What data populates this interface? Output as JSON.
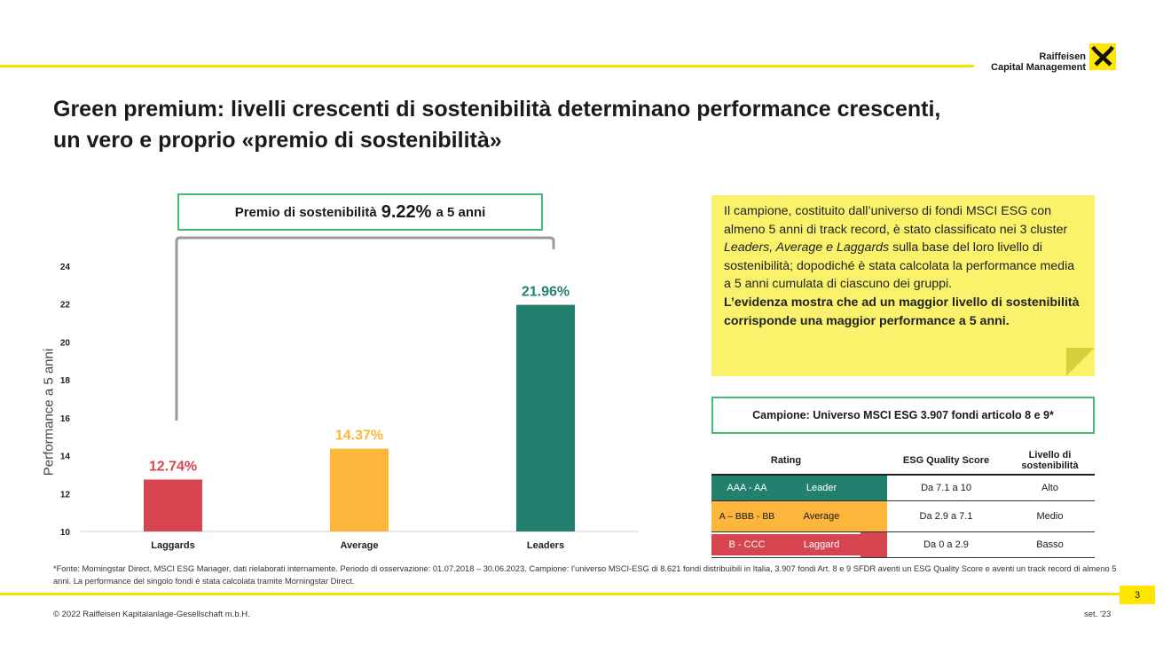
{
  "header": {
    "logo_line1": "Raiffeisen",
    "logo_line2": "Capital Management",
    "title_line1": "Green premium: livelli crescenti di sostenibilità determinano performance crescenti,",
    "title_line2": "un vero e proprio «premio di sostenibilità»"
  },
  "premium": {
    "prefix": "Premio di sostenibilità",
    "value": "9.22%",
    "suffix": "a 5 anni"
  },
  "chart_data": {
    "type": "bar",
    "categories": [
      "Laggards",
      "Average",
      "Leaders"
    ],
    "values": [
      12.74,
      14.37,
      21.96
    ],
    "value_labels": [
      "12.74%",
      "14.37%",
      "21.96%"
    ],
    "colors": [
      "#d64550",
      "#fbb63b",
      "#23806f"
    ],
    "ylabel": "Performance a 5 anni",
    "ylim": [
      10,
      24
    ],
    "yticks": [
      10,
      12,
      14,
      16,
      18,
      20,
      22,
      24
    ],
    "grid": false
  },
  "note": {
    "text1": "Il campione, costituito dall’universo di fondi MSCI ESG con almeno 5 anni di track record, è stato classificato nei 3 cluster ",
    "text_italic": "Leaders, Average e Laggards",
    "text2": " sulla base del loro livello di sostenibilità; dopodiché è stata calcolata la performance media a 5 anni cumulata di ciascuno dei gruppi.",
    "bold": "L’evidenza mostra che ad un maggior livello di sostenibilità corrisponde una maggior performance a 5 anni."
  },
  "sample": {
    "label": "Campione: Universo MSCI ESG 3.907 fondi articolo 8 e 9*"
  },
  "table": {
    "headers": [
      "Rating",
      "",
      "ESG Quality Score",
      "Livello di sostenibilità"
    ],
    "rows": [
      {
        "rating": "AAA - AA",
        "cluster": "Leader",
        "score": "Da 7.1 a 10",
        "level": "Alto",
        "color": "#23806f"
      },
      {
        "rating": "A – BBB - BB",
        "cluster": "Average",
        "score": "Da 2.9 a 7.1",
        "level": "Medio",
        "color": "#fbb63b"
      },
      {
        "rating": "B - CCC",
        "cluster": "Laggard",
        "score": "Da 0 a 2.9",
        "level": "Basso",
        "color": "#d64550"
      }
    ]
  },
  "footer": {
    "footnote": "*Fonte: Morningstar Direct, MSCI ESG Manager, dati rielaborati internamente. Periodo di osservazione: 01.07.2018 – 30.06.2023. Campione: l’universo MSCI-ESG di 8.621 fondi distribuibili in Italia, 3.907 fondi Art. 8 e 9 SFDR aventi un ESG Quality Score e aventi un track record di almeno 5 anni. La performance del singolo fondi è stata calcolata tramite Morningstar Direct.",
    "page": "3",
    "copyright": "© 2022 Raiffeisen Kapitalanlage-Gesellschaft m.b.H.",
    "date": "set. '23"
  }
}
